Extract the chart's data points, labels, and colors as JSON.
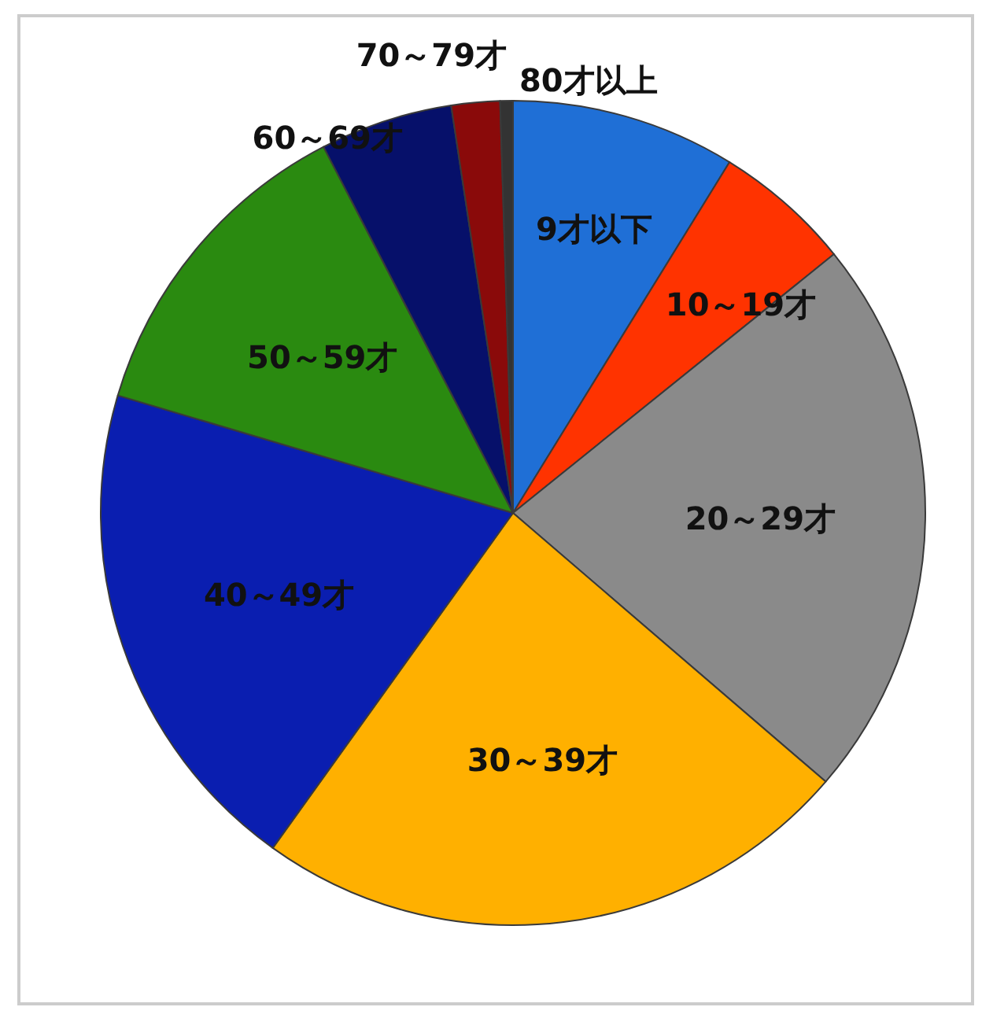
{
  "chart_data": {
    "type": "pie",
    "categories": [
      "9才以下",
      "10～19才",
      "20～29才",
      "30～39才",
      "40～49才",
      "50～59才",
      "60～69才",
      "70～79才",
      "80才以上"
    ],
    "values": [
      8.8,
      5.4,
      22.1,
      23.6,
      19.7,
      12.8,
      5.2,
      1.9,
      0.5
    ],
    "colors": [
      "#1f6fd6",
      "#ff3300",
      "#8a8a8a",
      "#ffb000",
      "#0a1eb0",
      "#2a8a10",
      "#06106a",
      "#8a0a0a",
      "#333333"
    ],
    "legend": false
  }
}
